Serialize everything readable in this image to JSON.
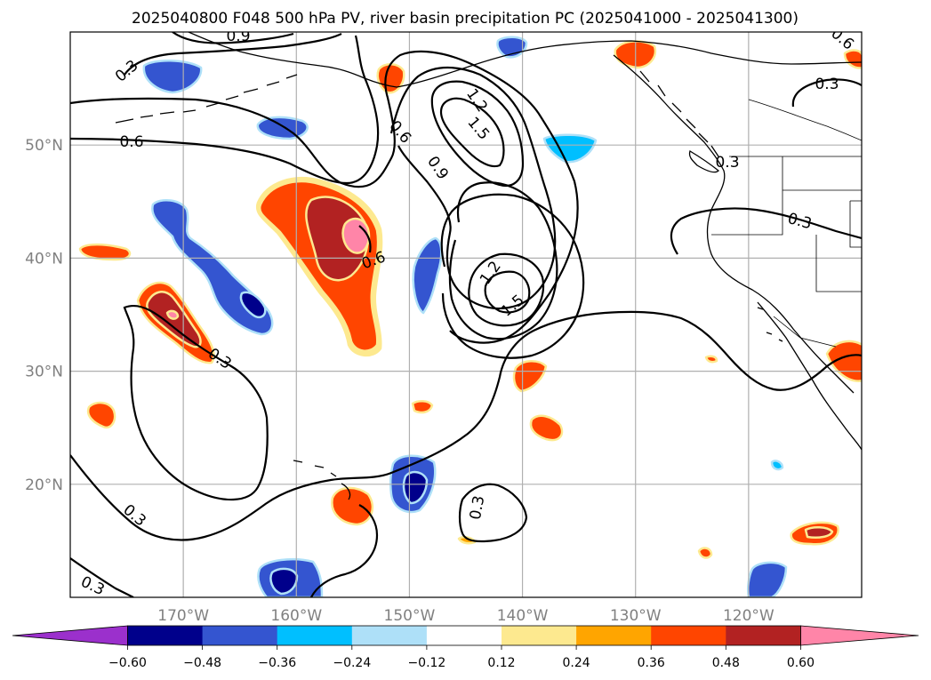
{
  "title": "2025040800 F048 500 hPa PV, river basin precipitation PC (2025041000 - 2025041300)",
  "map": {
    "extent": {
      "lon_min": -180,
      "lon_max": -110,
      "lat_min": 10,
      "lat_max": 60
    },
    "lon_ticks": [
      {
        "lon": -170,
        "label": "170°W"
      },
      {
        "lon": -160,
        "label": "160°W"
      },
      {
        "lon": -150,
        "label": "150°W"
      },
      {
        "lon": -140,
        "label": "140°W"
      },
      {
        "lon": -130,
        "label": "130°W"
      },
      {
        "lon": -120,
        "label": "120°W"
      }
    ],
    "lat_ticks": [
      {
        "lat": 20,
        "label": "20°N"
      },
      {
        "lat": 30,
        "label": "30°N"
      },
      {
        "lat": 40,
        "label": "40°N"
      },
      {
        "lat": 50,
        "label": "50°N"
      }
    ],
    "grid": true
  },
  "pv_contour_labels": [
    "0.3",
    "0.6",
    "0.9",
    "1.2",
    "1.5"
  ],
  "colorbar": {
    "ticks": [
      "−0.60",
      "−0.48",
      "−0.36",
      "−0.24",
      "−0.12",
      "0.12",
      "0.24",
      "0.36",
      "0.48",
      "0.60"
    ],
    "colors": [
      "#9b30cc",
      "#00008b",
      "#3455d0",
      "#00bfff",
      "#aee0f8",
      "#ffffff",
      "#fde98f",
      "#ffa500",
      "#ff4500",
      "#b22222",
      "#ff85a8"
    ]
  },
  "colors": {
    "pos1": "#fde98f",
    "pos2": "#ffa500",
    "pos3": "#ff4500",
    "pos4": "#b22222",
    "pos5": "#ff85a8",
    "neg1": "#aee0f8",
    "neg2": "#00bfff",
    "neg3": "#3455d0",
    "neg4": "#00008b"
  }
}
